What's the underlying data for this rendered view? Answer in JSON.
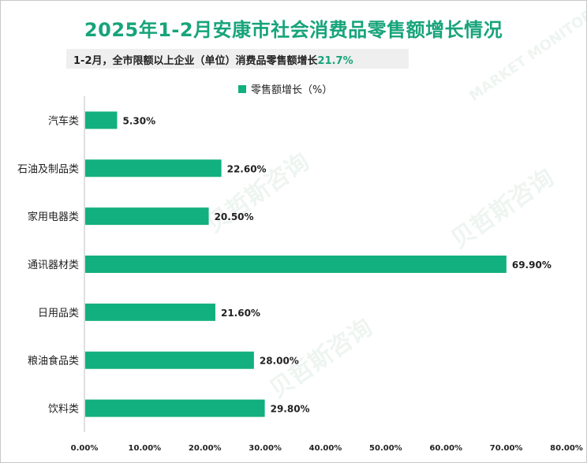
{
  "title": "2025年1-2月安康市社会消费品零售额增长情况",
  "subtitle": {
    "text": "1-2月，全市限额以上企业（单位）消费品零售额增长",
    "value": "21.7%"
  },
  "watermark": {
    "cn": "贝哲斯咨询",
    "en": "MARKET MONITOR"
  },
  "colors": {
    "bar": "#12b07f",
    "title": "#17a47a",
    "axis": "#bfbfbf"
  },
  "chart_data": {
    "type": "bar",
    "orientation": "horizontal",
    "categories": [
      "汽车类",
      "石油及制品类",
      "家用电器类",
      "通讯器材类",
      "日用品类",
      "粮油食品类",
      "饮料类"
    ],
    "series": [
      {
        "name": "零售额增长（%）",
        "values": [
          5.3,
          22.6,
          20.5,
          69.9,
          21.6,
          28.0,
          29.8
        ],
        "labels": [
          "5.30%",
          "22.60%",
          "20.50%",
          "69.90%",
          "21.60%",
          "28.00%",
          "29.80%"
        ]
      }
    ],
    "xlim": [
      0,
      80
    ],
    "xticks": [
      0,
      10,
      20,
      30,
      40,
      50,
      60,
      70,
      80
    ],
    "xtick_labels": [
      "0.00%",
      "10.00%",
      "20.00%",
      "30.00%",
      "40.00%",
      "50.00%",
      "60.00%",
      "70.00%",
      "80.00%"
    ],
    "legend_position": "top-center",
    "grid": false
  }
}
